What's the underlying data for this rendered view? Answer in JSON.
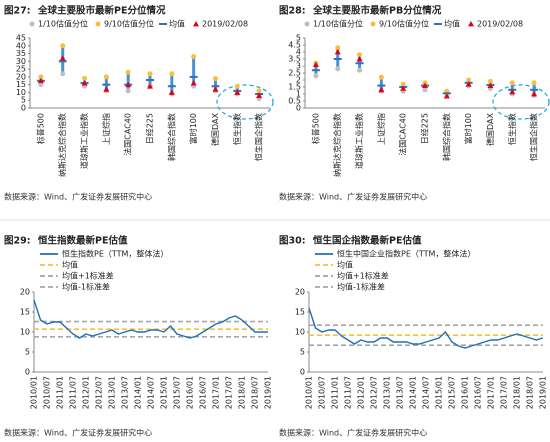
{
  "chart_data": [
    {
      "type": "dot",
      "figure_label": "图27:",
      "title": "全球主要股市最新PE分位情况",
      "source": "数据来源：Wind、广发证券发展研究中心",
      "categories": [
        "标普500",
        "纳斯达克综合指数",
        "道琼斯工业指数",
        "上证综指",
        "法国CAC40",
        "日经225",
        "韩国综合指数",
        "富时100",
        "德国DAX",
        "恒生指数",
        "恒生国企指数"
      ],
      "series": [
        {
          "name": "1/10估值分位",
          "color": "#bfbfbf",
          "marker": "circle",
          "values": [
            15,
            22,
            14,
            11,
            11,
            14,
            9,
            14,
            11,
            9,
            6
          ]
        },
        {
          "name": "9/10估值分位",
          "color": "#f5c040",
          "marker": "circle",
          "values": [
            20,
            40,
            19,
            20,
            23,
            22,
            22,
            33,
            19,
            14,
            11
          ]
        },
        {
          "name": "均值",
          "color": "#2e75b6",
          "marker": "dash",
          "values": [
            17.5,
            30,
            16,
            15,
            15,
            18,
            14,
            20,
            14,
            11,
            9
          ]
        },
        {
          "name": "2019/02/08",
          "color": "#e3001b",
          "marker": "triangle",
          "values": [
            17.5,
            32,
            16,
            12,
            15,
            14,
            10,
            16,
            12,
            10,
            8
          ]
        }
      ],
      "range_color": "#4a90d9",
      "ylim": [
        0,
        45
      ],
      "yticks": [
        0,
        5,
        10,
        15,
        20,
        25,
        30,
        35,
        40,
        45
      ]
    },
    {
      "type": "dot",
      "figure_label": "图28:",
      "title": "全球主要股市最新PB分位情况",
      "source": "数据来源：Wind、广发证券发展研究中心",
      "categories": [
        "标普500",
        "纳斯达克综合指数",
        "道琼斯工业指数",
        "上证综指",
        "法国CAC40",
        "日经225",
        "韩国综合指数",
        "富时100",
        "德国DAX",
        "恒生指数",
        "恒生国企指数"
      ],
      "series": [
        {
          "name": "1/10估值分位",
          "color": "#bfbfbf",
          "marker": "circle",
          "values": [
            2.3,
            2.8,
            2.7,
            1.2,
            1.2,
            1.3,
            0.9,
            1.6,
            1.4,
            1.0,
            0.9
          ]
        },
        {
          "name": "9/10估值分位",
          "color": "#f5c040",
          "marker": "circle",
          "values": [
            3.2,
            4.3,
            3.8,
            2.2,
            1.7,
            1.8,
            1.2,
            2.0,
            1.9,
            1.8,
            1.8
          ]
        },
        {
          "name": "均值",
          "color": "#2e75b6",
          "marker": "dash",
          "values": [
            2.7,
            3.5,
            3.2,
            1.6,
            1.5,
            1.6,
            1.05,
            1.8,
            1.65,
            1.3,
            1.3
          ]
        },
        {
          "name": "2019/02/08",
          "color": "#e3001b",
          "marker": "triangle",
          "values": [
            3.1,
            4.0,
            3.5,
            1.3,
            1.4,
            1.6,
            0.85,
            1.7,
            1.6,
            1.15,
            1.0
          ]
        }
      ],
      "range_color": "#4a90d9",
      "ylim": [
        0,
        5
      ],
      "yticks": [
        0,
        0.5,
        1,
        1.5,
        2,
        2.5,
        3,
        3.5,
        4,
        4.5,
        5
      ]
    },
    {
      "type": "line",
      "figure_label": "图29:",
      "title": "恒生指数最新PE估值",
      "source": "数据来源：Wind、广发证券发展研究中心",
      "categories": [
        "2010/01",
        null,
        "2010/07",
        null,
        "2011/01",
        null,
        "2011/07",
        null,
        "2012/01",
        null,
        "2012/07",
        null,
        "2013/01",
        null,
        "2013/07",
        null,
        "2014/01",
        null,
        "2014/07",
        null,
        "2015/01",
        null,
        "2015/07",
        null,
        "2016/01",
        null,
        "2016/07",
        null,
        "2017/01",
        null,
        "2017/07",
        null,
        "2018/01",
        null,
        "2018/07",
        null,
        "2019/01"
      ],
      "series": [
        {
          "name": "恒生指数PE（TTM，整体法）",
          "color": "#1f6fb5",
          "values": [
            18,
            13,
            12,
            12.5,
            12.5,
            11,
            9.5,
            8.5,
            9.5,
            9,
            9.5,
            10,
            10.5,
            9.5,
            10,
            10.5,
            10,
            10,
            10.5,
            10.5,
            10,
            11.5,
            9.5,
            9,
            8.5,
            9,
            10,
            11,
            12,
            12.5,
            13.5,
            14,
            13,
            11.5,
            10,
            10,
            10
          ]
        }
      ],
      "reference_lines": [
        {
          "name": "均值",
          "value": 10.7,
          "color": "#f5c040"
        },
        {
          "name": "均值+1标准差",
          "value": 12.6,
          "color": "#a6a6a6"
        },
        {
          "name": "均值-1标准差",
          "value": 8.8,
          "color": "#a6a6a6"
        }
      ],
      "ylim": [
        0,
        20
      ],
      "yticks": [
        0,
        5,
        10,
        15,
        20
      ]
    },
    {
      "type": "line",
      "figure_label": "图30:",
      "title": "恒生国企指数最新PE估值",
      "source": "数据来源：Wind、广发证券发展研究中心",
      "categories": [
        "2010/01",
        null,
        "2010/07",
        null,
        "2011/01",
        null,
        "2011/07",
        null,
        "2012/01",
        null,
        "2012/07",
        null,
        "2013/01",
        null,
        "2013/07",
        null,
        "2014/01",
        null,
        "2014/07",
        null,
        "2015/01",
        null,
        "2015/07",
        null,
        "2016/01",
        null,
        "2016/07",
        null,
        "2017/01",
        null,
        "2017/07",
        null,
        "2018/01",
        null,
        "2018/07",
        null,
        "2019/01"
      ],
      "series": [
        {
          "name": "恒生中国企业指数PE（TTM，整体法）",
          "color": "#1f6fb5",
          "values": [
            16,
            11,
            10,
            10.5,
            10.5,
            9,
            8,
            7,
            8,
            7.5,
            7.5,
            8.5,
            8.5,
            7.5,
            7.5,
            7.5,
            7,
            7,
            7.5,
            8,
            8.5,
            10,
            7.5,
            6.5,
            6,
            6.5,
            7,
            7.5,
            8,
            8,
            8.5,
            9,
            9.5,
            9,
            8.5,
            8,
            8.5
          ]
        }
      ],
      "reference_lines": [
        {
          "name": "均值",
          "value": 9.2,
          "color": "#f5c040"
        },
        {
          "name": "均值+1标准差",
          "value": 11.7,
          "color": "#a6a6a6"
        },
        {
          "name": "均值-1标准差",
          "value": 6.7,
          "color": "#a6a6a6"
        }
      ],
      "ylim": [
        0,
        20
      ],
      "yticks": [
        0,
        5,
        10,
        15,
        20
      ]
    }
  ]
}
